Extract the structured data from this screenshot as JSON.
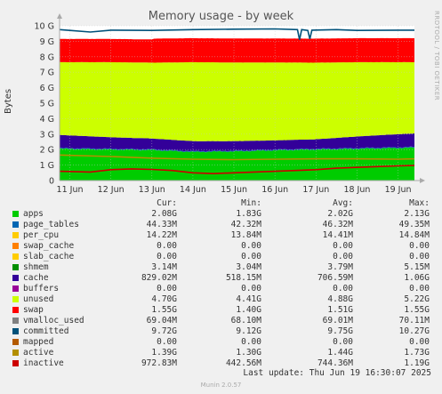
{
  "chart_data": {
    "type": "area",
    "title": "Memory usage - by week",
    "ylabel": "Bytes",
    "side_text": "RRDTOOL / TOBI OETIKER",
    "ylim": [
      0,
      10
    ],
    "yunit": "G",
    "y_ticks": [
      "0",
      "1 G",
      "2 G",
      "3 G",
      "4 G",
      "5 G",
      "6 G",
      "7 G",
      "8 G",
      "9 G",
      "10 G"
    ],
    "x_ticks": [
      "11 Jun",
      "12 Jun",
      "13 Jun",
      "14 Jun",
      "15 Jun",
      "16 Jun",
      "17 Jun",
      "18 Jun",
      "19 Jun"
    ],
    "x_range_days": [
      10.75,
      19.4
    ],
    "grid": true,
    "stack": [
      {
        "name": "apps",
        "color": "#00cc00",
        "points": [
          [
            10.75,
            2.05
          ],
          [
            12,
            2.0
          ],
          [
            13,
            1.97
          ],
          [
            14,
            1.85
          ],
          [
            15,
            1.88
          ],
          [
            16,
            1.95
          ],
          [
            17,
            2.0
          ],
          [
            18,
            2.05
          ],
          [
            19,
            2.1
          ],
          [
            19.4,
            2.12
          ]
        ]
      },
      {
        "name": "page_tables",
        "color": "#0066b3",
        "points": [
          [
            10.75,
            0.045
          ],
          [
            19.4,
            0.045
          ]
        ]
      },
      {
        "name": "shmem",
        "color": "#008f00",
        "points": [
          [
            10.75,
            0.003
          ],
          [
            19.4,
            0.003
          ]
        ]
      },
      {
        "name": "cache",
        "color": "#330099",
        "points": [
          [
            10.75,
            0.85
          ],
          [
            12,
            0.75
          ],
          [
            13,
            0.7
          ],
          [
            14,
            0.65
          ],
          [
            15,
            0.62
          ],
          [
            16,
            0.6
          ],
          [
            17,
            0.62
          ],
          [
            18,
            0.75
          ],
          [
            19,
            0.85
          ],
          [
            19.4,
            0.88
          ]
        ]
      },
      {
        "name": "unused",
        "color": "#ccff00",
        "points": [
          [
            10.75,
            4.7
          ],
          [
            12,
            4.85
          ],
          [
            13,
            4.9
          ],
          [
            14,
            5.1
          ],
          [
            15,
            5.08
          ],
          [
            16,
            5.03
          ],
          [
            17,
            4.95
          ],
          [
            18,
            4.8
          ],
          [
            19,
            4.65
          ],
          [
            19.4,
            4.6
          ]
        ]
      },
      {
        "name": "swap",
        "color": "#ff0000",
        "points": [
          [
            10.75,
            1.5
          ],
          [
            13,
            1.5
          ],
          [
            13.05,
            1.55
          ],
          [
            19.4,
            1.55
          ]
        ]
      }
    ],
    "lines": [
      {
        "name": "committed",
        "color": "#00517a",
        "points": [
          [
            10.75,
            9.75
          ],
          [
            11,
            9.7
          ],
          [
            11.5,
            9.6
          ],
          [
            12,
            9.72
          ],
          [
            13,
            9.7
          ],
          [
            14,
            9.75
          ],
          [
            15,
            9.78
          ],
          [
            16,
            9.8
          ],
          [
            16.55,
            9.75
          ],
          [
            16.6,
            9.1
          ],
          [
            16.65,
            9.75
          ],
          [
            16.8,
            9.7
          ],
          [
            16.85,
            9.15
          ],
          [
            16.9,
            9.72
          ],
          [
            17.5,
            9.75
          ],
          [
            18,
            9.7
          ],
          [
            19,
            9.72
          ],
          [
            19.4,
            9.72
          ]
        ]
      },
      {
        "name": "inactive",
        "color": "#cc0000",
        "points": [
          [
            10.75,
            0.6
          ],
          [
            11.5,
            0.55
          ],
          [
            12,
            0.7
          ],
          [
            12.5,
            0.75
          ],
          [
            13,
            0.72
          ],
          [
            13.5,
            0.65
          ],
          [
            14,
            0.5
          ],
          [
            14.5,
            0.45
          ],
          [
            15,
            0.5
          ],
          [
            15.5,
            0.55
          ],
          [
            16,
            0.6
          ],
          [
            16.5,
            0.65
          ],
          [
            17,
            0.7
          ],
          [
            17.5,
            0.8
          ],
          [
            18,
            0.85
          ],
          [
            18.5,
            0.9
          ],
          [
            19,
            0.95
          ],
          [
            19.4,
            0.97
          ]
        ]
      },
      {
        "name": "active",
        "color": "#b38f00",
        "points": [
          [
            10.75,
            1.65
          ],
          [
            12,
            1.55
          ],
          [
            13,
            1.45
          ],
          [
            14,
            1.38
          ],
          [
            15,
            1.35
          ],
          [
            16,
            1.38
          ],
          [
            17,
            1.4
          ],
          [
            18,
            1.4
          ],
          [
            19,
            1.38
          ],
          [
            19.4,
            1.4
          ]
        ]
      }
    ]
  },
  "legend": {
    "headers": [
      "Cur:",
      "Min:",
      "Avg:",
      "Max:"
    ],
    "rows": [
      {
        "name": "apps",
        "color": "#00cc00",
        "cur": "2.08G",
        "min": "1.83G",
        "avg": "2.02G",
        "max": "2.13G"
      },
      {
        "name": "page_tables",
        "color": "#0066b3",
        "cur": "44.33M",
        "min": "42.32M",
        "avg": "46.32M",
        "max": "49.35M"
      },
      {
        "name": "per_cpu",
        "color": "#ffcc00",
        "cur": "14.22M",
        "min": "13.84M",
        "avg": "14.41M",
        "max": "14.84M"
      },
      {
        "name": "swap_cache",
        "color": "#ff8000",
        "cur": "0.00",
        "min": "0.00",
        "avg": "0.00",
        "max": "0.00"
      },
      {
        "name": "slab_cache",
        "color": "#ffcc00",
        "cur": "0.00",
        "min": "0.00",
        "avg": "0.00",
        "max": "0.00"
      },
      {
        "name": "shmem",
        "color": "#008f00",
        "cur": "3.14M",
        "min": "3.04M",
        "avg": "3.79M",
        "max": "5.15M"
      },
      {
        "name": "cache",
        "color": "#330099",
        "cur": "829.02M",
        "min": "518.15M",
        "avg": "706.59M",
        "max": "1.06G"
      },
      {
        "name": "buffers",
        "color": "#990099",
        "cur": "0.00",
        "min": "0.00",
        "avg": "0.00",
        "max": "0.00"
      },
      {
        "name": "unused",
        "color": "#ccff00",
        "cur": "4.70G",
        "min": "4.41G",
        "avg": "4.88G",
        "max": "5.22G"
      },
      {
        "name": "swap",
        "color": "#ff0000",
        "cur": "1.55G",
        "min": "1.40G",
        "avg": "1.51G",
        "max": "1.55G"
      },
      {
        "name": "vmalloc_used",
        "color": "#808080",
        "cur": "69.04M",
        "min": "68.10M",
        "avg": "69.01M",
        "max": "70.11M"
      },
      {
        "name": "committed",
        "color": "#00517a",
        "cur": "9.72G",
        "min": "9.12G",
        "avg": "9.75G",
        "max": "10.27G"
      },
      {
        "name": "mapped",
        "color": "#b35a00",
        "cur": "0.00",
        "min": "0.00",
        "avg": "0.00",
        "max": "0.00"
      },
      {
        "name": "active",
        "color": "#b38f00",
        "cur": "1.39G",
        "min": "1.30G",
        "avg": "1.44G",
        "max": "1.73G"
      },
      {
        "name": "inactive",
        "color": "#cc0000",
        "cur": "972.83M",
        "min": "442.56M",
        "avg": "744.36M",
        "max": "1.19G"
      }
    ]
  },
  "last_update": "Last update: Thu Jun 19 16:30:07 2025",
  "footer": "Munin 2.0.57"
}
